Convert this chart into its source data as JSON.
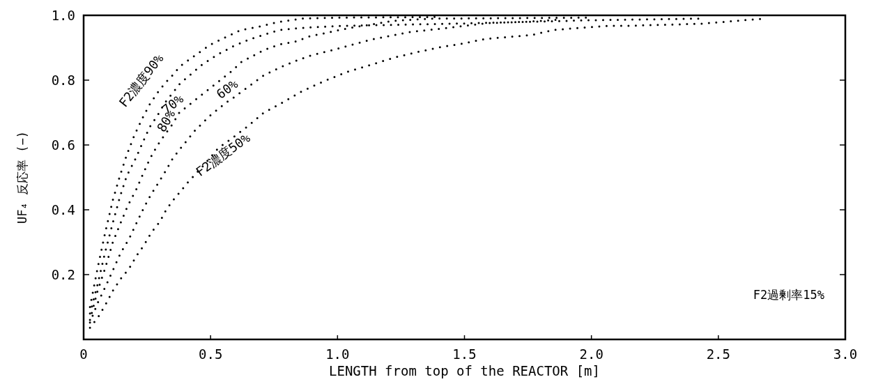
{
  "chart_data": {
    "type": "line",
    "xlabel": "LENGTH from top of the REACTOR [m]",
    "ylabel": "UF₄ 反応率 (−)",
    "xlim": [
      0,
      3.0
    ],
    "ylim": [
      0,
      1.0
    ],
    "xticks": [
      0,
      0.5,
      {
        "value": 1,
        "label": "1.0"
      },
      1.5,
      {
        "value": 2,
        "label": "2.0"
      },
      2.5,
      {
        "value": 3,
        "label": "3.0"
      }
    ],
    "yticks": [
      0.2,
      0.4,
      0.6,
      0.8,
      {
        "value": 1,
        "label": "1.0"
      }
    ],
    "grid": false,
    "legend": false,
    "marker": "none",
    "line_style": "dotted",
    "series": [
      {
        "name": "F2濃度90%",
        "color": "#000000",
        "x": [
          0.025,
          0.055,
          0.085,
          0.115,
          0.143,
          0.17,
          0.2,
          0.23,
          0.26,
          0.29,
          0.32,
          0.35,
          0.38,
          0.44,
          0.5,
          0.56,
          0.62,
          0.68,
          0.77,
          0.86,
          1.0,
          1.4
        ],
        "values": [
          0.1,
          0.22,
          0.33,
          0.43,
          0.505,
          0.57,
          0.63,
          0.68,
          0.725,
          0.76,
          0.79,
          0.815,
          0.843,
          0.877,
          0.91,
          0.933,
          0.955,
          0.963,
          0.98,
          0.99,
          0.993,
          0.995
        ]
      },
      {
        "name": "80%",
        "color": "#000000",
        "x": [
          0.025,
          0.055,
          0.085,
          0.115,
          0.143,
          0.17,
          0.204,
          0.234,
          0.26,
          0.29,
          0.32,
          0.35,
          0.38,
          0.41,
          0.47,
          0.53,
          0.59,
          0.65,
          0.71,
          0.77,
          0.89,
          1.04,
          1.5,
          2.0,
          2.43
        ],
        "values": [
          0.08,
          0.17,
          0.27,
          0.36,
          0.44,
          0.505,
          0.557,
          0.61,
          0.655,
          0.69,
          0.73,
          0.76,
          0.79,
          0.81,
          0.85,
          0.88,
          0.905,
          0.925,
          0.94,
          0.955,
          0.963,
          0.968,
          0.975,
          0.985,
          0.99
        ]
      },
      {
        "name": "70%",
        "color": "#000000",
        "x": [
          0.025,
          0.055,
          0.085,
          0.115,
          0.146,
          0.174,
          0.207,
          0.237,
          0.26,
          0.29,
          0.32,
          0.35,
          0.377,
          0.59,
          0.617,
          0.65,
          0.71,
          0.77,
          0.83,
          0.89,
          1.04,
          1.22,
          1.37,
          2.0
        ],
        "values": [
          0.06,
          0.15,
          0.22,
          0.3,
          0.36,
          0.413,
          0.462,
          0.516,
          0.556,
          0.598,
          0.632,
          0.664,
          0.7,
          0.832,
          0.854,
          0.868,
          0.893,
          0.91,
          0.918,
          0.935,
          0.96,
          0.983,
          0.99,
          0.993
        ]
      },
      {
        "name": "60%",
        "color": "#000000",
        "x": [
          0.025,
          0.055,
          0.088,
          0.115,
          0.146,
          0.18,
          0.207,
          0.237,
          0.264,
          0.295,
          0.32,
          0.35,
          0.377,
          0.41,
          0.44,
          0.5,
          0.56,
          0.59,
          0.71,
          0.77,
          0.83,
          0.89,
          1.01,
          1.13,
          1.28,
          1.43,
          1.59,
          1.74,
          1.88
        ],
        "values": [
          0.052,
          0.112,
          0.166,
          0.213,
          0.267,
          0.312,
          0.357,
          0.406,
          0.445,
          0.484,
          0.516,
          0.557,
          0.585,
          0.617,
          0.646,
          0.692,
          0.73,
          0.746,
          0.815,
          0.838,
          0.858,
          0.875,
          0.899,
          0.925,
          0.948,
          0.961,
          0.976,
          0.98,
          0.987
        ]
      },
      {
        "name": "F2濃度50%",
        "color": "#000000",
        "x": [
          0.025,
          0.058,
          0.088,
          0.115,
          0.146,
          0.18,
          0.21,
          0.237,
          0.267,
          0.3,
          0.325,
          0.35,
          0.41,
          0.47,
          0.53,
          0.59,
          0.65,
          0.71,
          0.77,
          0.86,
          0.95,
          1.04,
          1.13,
          1.22,
          1.31,
          1.4,
          1.5,
          1.58,
          1.67,
          1.77,
          1.85,
          1.95,
          2.07,
          2.15,
          2.43,
          2.68
        ],
        "values": [
          0.036,
          0.07,
          0.11,
          0.15,
          0.187,
          0.22,
          0.26,
          0.29,
          0.33,
          0.363,
          0.4,
          0.427,
          0.484,
          0.535,
          0.59,
          0.624,
          0.66,
          0.7,
          0.725,
          0.766,
          0.798,
          0.826,
          0.847,
          0.869,
          0.886,
          0.901,
          0.914,
          0.927,
          0.933,
          0.94,
          0.955,
          0.961,
          0.968,
          0.968,
          0.974,
          0.99
        ]
      }
    ],
    "annotations": [
      "F2過剰率15%"
    ]
  }
}
